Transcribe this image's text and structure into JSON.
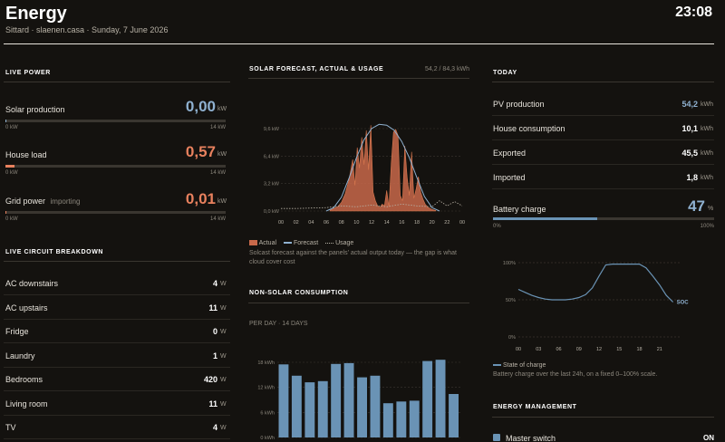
{
  "header": {
    "title": "Energy",
    "subtitle": "Sittard · slaenen.casa · Sunday, 7 June 2026",
    "clock": "23:08"
  },
  "live_power": {
    "title": "LIVE POWER",
    "items": [
      {
        "label": "Solar production",
        "note": "",
        "value": "0,00",
        "unit": "kW",
        "min": "0 kW",
        "max": "14 kW",
        "fraction": 0.0,
        "color": "#8fb1d0"
      },
      {
        "label": "House load",
        "note": "",
        "value": "0,57",
        "unit": "kW",
        "min": "0 kW",
        "max": "14 kW",
        "fraction": 0.04,
        "color": "#e8815e"
      },
      {
        "label": "Grid power",
        "note": "importing",
        "value": "0,01",
        "unit": "kW",
        "min": "0 kW",
        "max": "14 kW",
        "fraction": 0.001,
        "color": "#e8815e"
      }
    ]
  },
  "circuits": {
    "title": "LIVE CIRCUIT BREAKDOWN",
    "rows": [
      {
        "label": "AC downstairs",
        "value": "4",
        "unit": "W"
      },
      {
        "label": "AC upstairs",
        "value": "11",
        "unit": "W"
      },
      {
        "label": "Fridge",
        "value": "0",
        "unit": "W"
      },
      {
        "label": "Laundry",
        "value": "1",
        "unit": "W"
      },
      {
        "label": "Bedrooms",
        "value": "420",
        "unit": "W"
      },
      {
        "label": "Living room",
        "value": "11",
        "unit": "W"
      },
      {
        "label": "TV",
        "value": "4",
        "unit": "W"
      }
    ]
  },
  "solar": {
    "title": "SOLAR FORECAST, ACTUAL & USAGE",
    "summary": "54,2 / 84,3 kWh",
    "legend": {
      "actual": "Actual",
      "forecast": "Forecast",
      "usage": "Usage"
    },
    "caption": "Solcast forecast against the panels' actual output today — the gap is what cloud cover cost"
  },
  "nonsolar": {
    "title": "NON-SOLAR CONSUMPTION",
    "subtitle": "PER DAY · 14 DAYS"
  },
  "today": {
    "title": "TODAY",
    "rows": [
      {
        "label": "PV production",
        "value": "54,2",
        "unit": "kWh",
        "color": "#8fb1d0"
      },
      {
        "label": "House consumption",
        "value": "10,1",
        "unit": "kWh",
        "color": "#ffffff"
      },
      {
        "label": "Exported",
        "value": "45,5",
        "unit": "kWh",
        "color": "#ffffff"
      },
      {
        "label": "Imported",
        "value": "1,8",
        "unit": "kWh",
        "color": "#ffffff"
      }
    ],
    "battery": {
      "label": "Battery charge",
      "value": "47",
      "unit": "%",
      "min": "0%",
      "max": "100%",
      "fraction": 0.47
    },
    "soc_legend": "State of charge",
    "soc_caption": "Battery charge over the last 24h, on a fixed 0–100% scale."
  },
  "management": {
    "title": "ENERGY MANAGEMENT",
    "master_label": "Master switch",
    "master_state": "ON"
  },
  "chart_data": [
    {
      "type": "area",
      "title": "SOLAR FORECAST, ACTUAL & USAGE",
      "x_ticks": [
        "00",
        "02",
        "04",
        "06",
        "08",
        "10",
        "12",
        "14",
        "16",
        "18",
        "20",
        "22",
        "00"
      ],
      "y_ticks": [
        "0,0 kW",
        "3,2 kW",
        "6,4 kW",
        "9,6 kW"
      ],
      "ylim": [
        0,
        11.5
      ],
      "xlim": [
        0,
        24
      ],
      "series": [
        {
          "name": "Actual",
          "color": "#c8694a",
          "x": [
            6.5,
            7.5,
            8,
            8.5,
            9,
            9.5,
            9.8,
            10.1,
            10.4,
            10.7,
            11,
            11.3,
            11.6,
            11.9,
            12.2,
            12.5,
            12.8,
            13.1,
            13.4,
            13.7,
            14,
            14.3,
            14.6,
            14.9,
            15.2,
            15.5,
            15.8,
            16.1,
            16.4,
            16.7,
            17,
            17.3,
            17.6,
            17.9,
            18.2,
            18.5,
            18.8,
            19.1,
            19.5,
            20,
            20.5
          ],
          "y": [
            0.1,
            0.5,
            1.0,
            2.0,
            3.6,
            6.0,
            3.0,
            7.4,
            5.0,
            8.6,
            5.4,
            9.4,
            4.8,
            10.0,
            2.2,
            1.2,
            0.6,
            0.4,
            0.8,
            0.6,
            2.4,
            0.5,
            5.5,
            9.2,
            9.5,
            8.8,
            1.8,
            1.2,
            7.6,
            4.0,
            1.8,
            6.9,
            1.5,
            2.6,
            4.0,
            2.2,
            1.4,
            0.8,
            0.4,
            0.2,
            0.05
          ]
        },
        {
          "name": "Forecast",
          "color": "#8fb1d0",
          "x": [
            6,
            7,
            8,
            9,
            10,
            11,
            12,
            13,
            14,
            15,
            16,
            17,
            18,
            19,
            20,
            21
          ],
          "y": [
            0,
            0.4,
            1.6,
            3.8,
            6.2,
            8.3,
            9.6,
            10.1,
            10.0,
            9.4,
            8.1,
            6.2,
            3.9,
            1.7,
            0.4,
            0
          ]
        },
        {
          "name": "Usage",
          "color": "#b8b2a6",
          "x": [
            0,
            2,
            4,
            6,
            8,
            10,
            12,
            14,
            16,
            18,
            20,
            21,
            22,
            23,
            24
          ],
          "y": [
            0.3,
            0.3,
            0.35,
            0.4,
            0.6,
            0.5,
            0.7,
            0.5,
            0.8,
            0.6,
            0.5,
            1.2,
            0.6,
            1.1,
            0.6
          ]
        }
      ]
    },
    {
      "type": "bar",
      "title": "NON-SOLAR CONSUMPTION",
      "y_ticks": [
        "0 kWh",
        "6 kWh",
        "12 kWh",
        "18 kWh"
      ],
      "ylim": [
        0,
        18
      ],
      "values": [
        17.5,
        14.8,
        13.2,
        13.5,
        17.6,
        17.8,
        14.4,
        14.8,
        8.2,
        8.6,
        8.8,
        18.3,
        18.6,
        10.4
      ],
      "color": "#6a93b5"
    },
    {
      "type": "line",
      "title": "State of charge",
      "x_ticks": [
        "00",
        "03",
        "06",
        "09",
        "12",
        "15",
        "18",
        "21"
      ],
      "y_ticks": [
        "0%",
        "50%",
        "100%"
      ],
      "ylim": [
        0,
        100
      ],
      "xlim": [
        0,
        24
      ],
      "end_label": "SOC",
      "series": [
        {
          "name": "State of charge",
          "color": "#6a93b5",
          "x": [
            0,
            1,
            2,
            3,
            4,
            5,
            6,
            7,
            8,
            9,
            10,
            11,
            12,
            13,
            14,
            15,
            16,
            17,
            18,
            19,
            20,
            21,
            22,
            23
          ],
          "y": [
            64,
            60,
            56,
            53,
            51,
            50,
            50,
            50,
            51,
            53,
            57,
            66,
            82,
            97,
            98,
            98,
            98,
            98,
            98,
            93,
            82,
            70,
            56,
            47
          ]
        }
      ]
    }
  ]
}
